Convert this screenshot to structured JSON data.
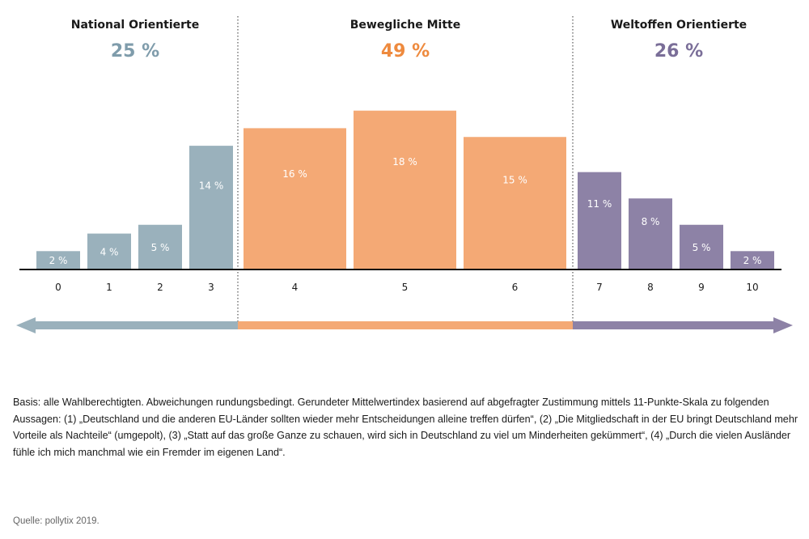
{
  "chart_data": {
    "type": "bar",
    "categories": [
      "0",
      "1",
      "2",
      "3",
      "4",
      "5",
      "6",
      "7",
      "8",
      "9",
      "10"
    ],
    "values": [
      2,
      4,
      5,
      14,
      16,
      18,
      15,
      11,
      8,
      5,
      2
    ],
    "value_labels": [
      "2 %",
      "4 %",
      "5 %",
      "14 %",
      "16 %",
      "18 %",
      "15 %",
      "11 %",
      "8 %",
      "5 %",
      "2 %"
    ],
    "groups": [
      {
        "title": "National Orientierte",
        "pct_label": "25 %",
        "value": 25,
        "categories": [
          "0",
          "1",
          "2",
          "3"
        ],
        "color": "#9ab1bc",
        "title_color": "#7f9cab"
      },
      {
        "title": "Bewegliche Mitte",
        "pct_label": "49 %",
        "value": 49,
        "categories": [
          "4",
          "5",
          "6"
        ],
        "color": "#f4a975",
        "title_color": "#ee8a3e"
      },
      {
        "title": "Weltoffen Orientierte",
        "pct_label": "26 %",
        "value": 26,
        "categories": [
          "7",
          "8",
          "9",
          "10"
        ],
        "color": "#8d82a6",
        "title_color": "#7a6e98"
      }
    ],
    "ylim": [
      0,
      20
    ],
    "grid": false,
    "xlabel": "",
    "ylabel": ""
  },
  "note": "Basis: alle Wahlberechtigten. Abweichungen rundungsbedingt. Gerundeter Mittelwertindex basierend auf abgefragter Zustimmung mittels 11-Punkte-Skala zu folgenden Aussagen: (1) „Deutschland und die anderen EU-Länder sollten wieder mehr Entscheidungen alleine treffen dürfen“, (2) „Die Mitgliedschaft in der EU bringt Deutschland mehr Vorteile als Nachteile“ (umgepolt), (3) „Statt auf das große Ganze zu schauen, wird sich in Deutschland zu viel um Minderheiten gekümmert“, (4) „Durch die vielen Ausländer fühle ich mich manchmal wie ein Fremder im eigenen Land“.",
  "source": "Quelle: pollytix 2019."
}
